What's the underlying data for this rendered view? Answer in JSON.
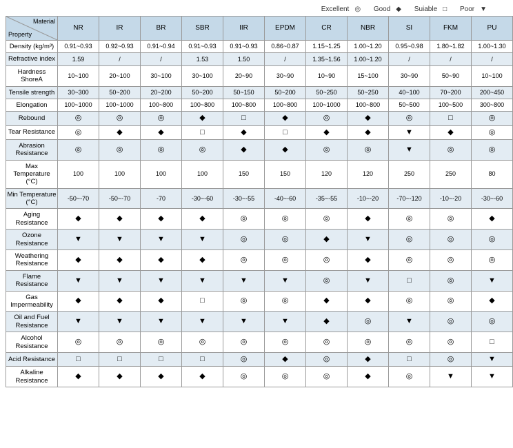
{
  "legend": {
    "excellent": {
      "label": "Excellent",
      "symbol": "◎"
    },
    "good": {
      "label": "Good",
      "symbol": "◆"
    },
    "suitable": {
      "label": "Suiable",
      "symbol": "□"
    },
    "poor": {
      "label": "Poor",
      "symbol": "▼"
    }
  },
  "corner": {
    "material": "Material",
    "property": "Property"
  },
  "colors": {
    "header_bg": "#c5d9e8",
    "alt_row_bg": "#e3ecf3",
    "row_bg": "#ffffff",
    "border": "#999999",
    "text": "#333333"
  },
  "symbols": {
    "E": "◎",
    "G": "◆",
    "S": "□",
    "P": "▼"
  },
  "columns": [
    "NR",
    "IR",
    "BR",
    "SBR",
    "IIR",
    "EPDM",
    "CR",
    "NBR",
    "SI",
    "FKM",
    "PU"
  ],
  "rows": [
    {
      "label": "Density (kg/m³)",
      "cells": [
        "0.91~0.93",
        "0.92~0.93",
        "0.91~0.94",
        "0.91~0.93",
        "0.91~0.93",
        "0.86~0.87",
        "1.15~1.25",
        "1.00~1.20",
        "0.95~0.98",
        "1.80~1.82",
        "1.00~1.30"
      ]
    },
    {
      "label": "Refractive index",
      "cells": [
        "1.59",
        "/",
        "/",
        "1.53",
        "1.50",
        "/",
        "1.35~1.56",
        "1.00~1.20",
        "/",
        "/",
        "/"
      ]
    },
    {
      "label": "Hardness ShoreA",
      "cells": [
        "10~100",
        "20~100",
        "30~100",
        "30~100",
        "20~90",
        "30~90",
        "10~90",
        "15~100",
        "30~90",
        "50~90",
        "10~100"
      ]
    },
    {
      "label": "Tensile strength",
      "cells": [
        "30~300",
        "50~200",
        "20~200",
        "50~200",
        "50~150",
        "50~200",
        "50~250",
        "50~250",
        "40~100",
        "70~200",
        "200~450"
      ]
    },
    {
      "label": "Elongation",
      "cells": [
        "100~1000",
        "100~1000",
        "100~800",
        "100~800",
        "100~800",
        "100~800",
        "100~1000",
        "100~800",
        "50~500",
        "100~500",
        "300~800"
      ]
    },
    {
      "label": "Rebound",
      "cells": [
        "E",
        "E",
        "E",
        "G",
        "S",
        "G",
        "E",
        "G",
        "E",
        "S",
        "E"
      ]
    },
    {
      "label": "Tear Resistance",
      "cells": [
        "E",
        "G",
        "G",
        "S",
        "G",
        "S",
        "G",
        "G",
        "P",
        "G",
        "E"
      ]
    },
    {
      "label": "Abrasion Resistance",
      "cells": [
        "E",
        "E",
        "E",
        "E",
        "G",
        "G",
        "E",
        "E",
        "P",
        "E",
        "E"
      ]
    },
    {
      "label": "Max Temperature (°C)",
      "cells": [
        "100",
        "100",
        "100",
        "100",
        "150",
        "150",
        "120",
        "120",
        "250",
        "250",
        "80"
      ]
    },
    {
      "label": "Min Temperature (°C)",
      "cells": [
        "-50~-70",
        "-50~-70",
        "-70",
        "-30~-60",
        "-30~-55",
        "-40~-60",
        "-35~-55",
        "-10~-20",
        "-70~-120",
        "-10~-20",
        "-30~-60"
      ]
    },
    {
      "label": "Aging Resistance",
      "cells": [
        "G",
        "G",
        "G",
        "G",
        "E",
        "E",
        "E",
        "G",
        "E",
        "E",
        "G"
      ]
    },
    {
      "label": "Ozone Resistance",
      "cells": [
        "P",
        "P",
        "P",
        "P",
        "E",
        "E",
        "G",
        "P",
        "E",
        "E",
        "E"
      ]
    },
    {
      "label": "Weathering Resistance",
      "cells": [
        "G",
        "G",
        "G",
        "G",
        "E",
        "E",
        "E",
        "G",
        "E",
        "E",
        "E"
      ]
    },
    {
      "label": "Flame Resistance",
      "cells": [
        "P",
        "P",
        "P",
        "P",
        "P",
        "P",
        "E",
        "P",
        "S",
        "E",
        "P"
      ]
    },
    {
      "label": "Gas Impermeability",
      "cells": [
        "G",
        "G",
        "G",
        "S",
        "E",
        "E",
        "G",
        "G",
        "E",
        "E",
        "G"
      ]
    },
    {
      "label": "Oil and Fuel Resistance",
      "cells": [
        "P",
        "P",
        "P",
        "P",
        "P",
        "P",
        "G",
        "E",
        "P",
        "E",
        "E"
      ]
    },
    {
      "label": "Alcohol Resistance",
      "cells": [
        "E",
        "E",
        "E",
        "E",
        "E",
        "E",
        "E",
        "E",
        "E",
        "E",
        "S"
      ]
    },
    {
      "label": "Acid Resistance",
      "cells": [
        "S",
        "S",
        "S",
        "S",
        "E",
        "G",
        "E",
        "G",
        "S",
        "E",
        "P"
      ]
    },
    {
      "label": "Alkaline Resistance",
      "cells": [
        "G",
        "G",
        "G",
        "G",
        "E",
        "E",
        "E",
        "G",
        "E",
        "P",
        "P"
      ]
    }
  ]
}
